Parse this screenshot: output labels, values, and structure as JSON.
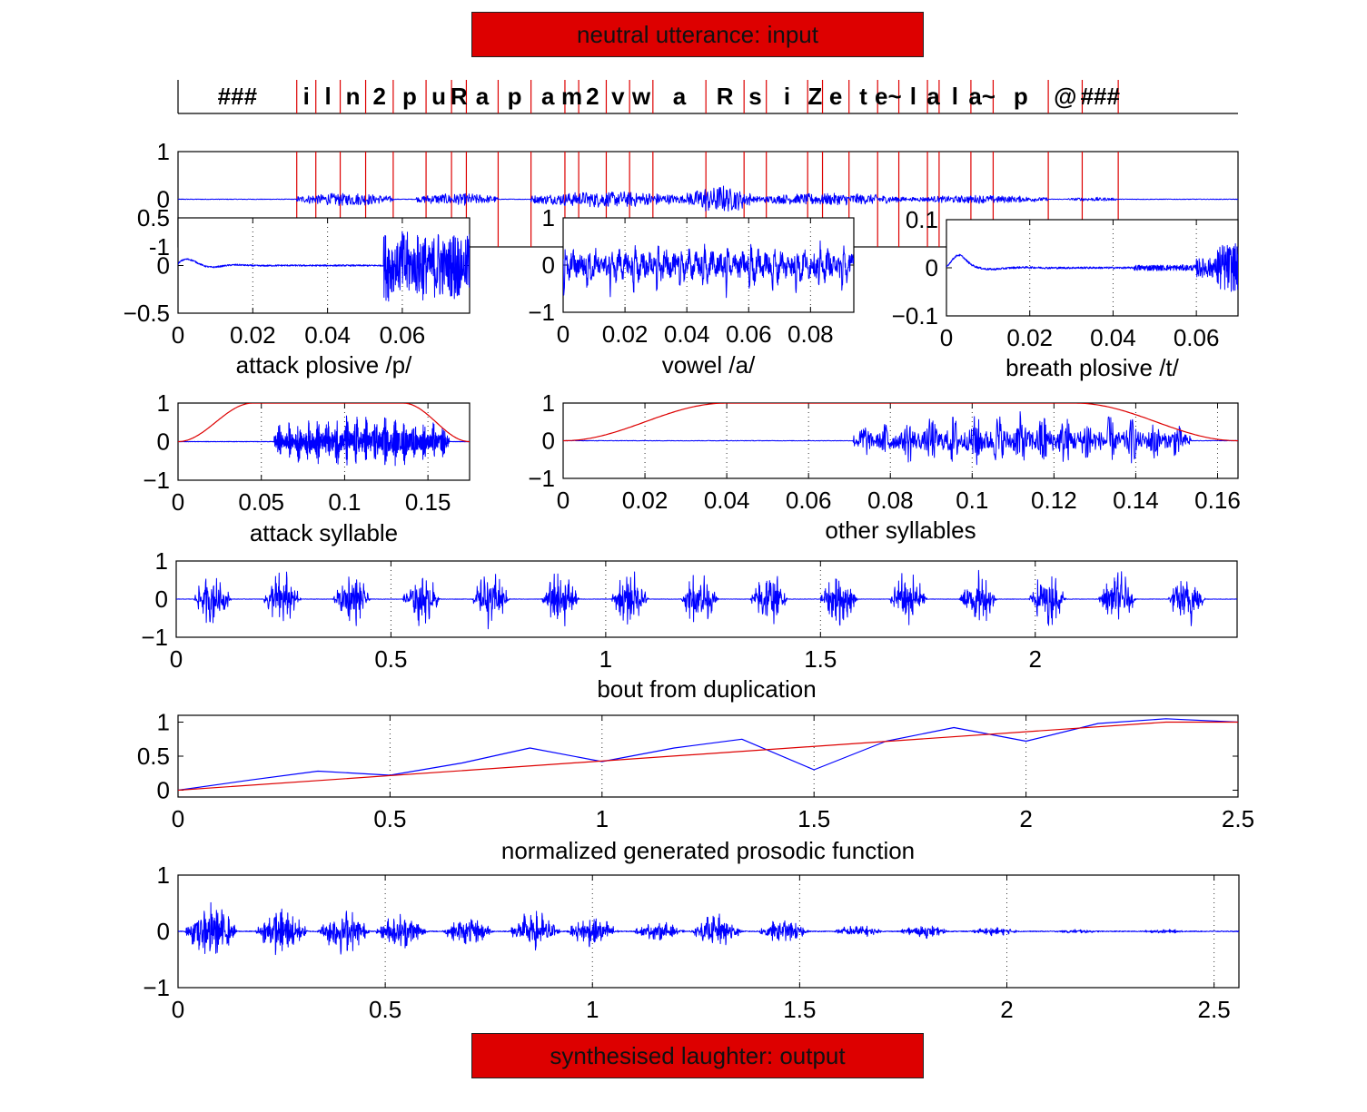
{
  "input_banner": "neutral utterance: input",
  "output_banner": "synthesised laughter: output",
  "colors": {
    "signal": "#0000ff",
    "envelope": "#dd0000",
    "banner_bg": "#dd0000",
    "axes": "#000000"
  },
  "chart_data": [
    {
      "id": "phoneme_tier",
      "type": "segmentation",
      "labels": [
        "###",
        "i",
        "l",
        "n",
        "2",
        "p",
        "u",
        "R",
        "a",
        "p",
        "a",
        "m",
        "2",
        "v",
        "w",
        "a",
        "R",
        "s",
        "i",
        "Z",
        "e",
        "t",
        "e~",
        "l",
        "a",
        "l",
        "a~",
        "p",
        "@",
        "###"
      ],
      "boundaries": [
        0.112,
        0.13,
        0.153,
        0.177,
        0.203,
        0.234,
        0.258,
        0.272,
        0.302,
        0.333,
        0.365,
        0.378,
        0.404,
        0.426,
        0.448,
        0.498,
        0.534,
        0.555,
        0.594,
        0.608,
        0.633,
        0.66,
        0.68,
        0.707,
        0.718,
        0.748,
        0.769,
        0.821,
        0.853,
        0.887
      ],
      "xlim": [
        0,
        1
      ]
    },
    {
      "id": "input_waveform",
      "type": "line",
      "ylim": [
        -1,
        1
      ],
      "yticks": [
        "1",
        "0",
        "-1"
      ],
      "grid": false
    },
    {
      "id": "attack_plosive",
      "type": "line",
      "title": "attack plosive /p/",
      "xlim": [
        0,
        0.078
      ],
      "ylim": [
        -0.5,
        0.5
      ],
      "xticks": [
        "0",
        "0.02",
        "0.04",
        "0.06"
      ],
      "yticks": [
        "0.5",
        "0",
        "−0.5"
      ],
      "grid": "x dotted"
    },
    {
      "id": "vowel_a",
      "type": "line",
      "title": "vowel /a/",
      "xlim": [
        0,
        0.094
      ],
      "ylim": [
        -1,
        1
      ],
      "xticks": [
        "0",
        "0.02",
        "0.04",
        "0.06",
        "0.08"
      ],
      "yticks": [
        "1",
        "0",
        "−1"
      ],
      "grid": "x dotted"
    },
    {
      "id": "breath_plosive",
      "type": "line",
      "title": "breath plosive /t/",
      "xlim": [
        0,
        0.07
      ],
      "ylim": [
        -0.1,
        0.1
      ],
      "xticks": [
        "0",
        "0.02",
        "0.04",
        "0.06"
      ],
      "yticks": [
        "0.1",
        "0",
        "−0.1"
      ],
      "grid": "x dotted"
    },
    {
      "id": "attack_syllable",
      "type": "line",
      "title": "attack syllable",
      "xlim": [
        0,
        0.175
      ],
      "ylim": [
        -1,
        1
      ],
      "xticks": [
        "0",
        "0.05",
        "0.1",
        "0.15"
      ],
      "yticks": [
        "1",
        "0",
        "−1"
      ],
      "grid": "x dotted",
      "series": [
        {
          "name": "",
          "kind": "waveform"
        },
        {
          "name": "",
          "kind": "window",
          "rise_end": 0.045,
          "fall_start": 0.135
        }
      ]
    },
    {
      "id": "other_syllables",
      "type": "line",
      "title": "other syllables",
      "xlim": [
        0,
        0.165
      ],
      "ylim": [
        -1,
        1
      ],
      "xticks": [
        "0",
        "0.02",
        "0.04",
        "0.06",
        "0.08",
        "0.1",
        "0.12",
        "0.14",
        "0.16"
      ],
      "yticks": [
        "1",
        "0",
        "−1"
      ],
      "grid": "x dotted",
      "series": [
        {
          "name": "",
          "kind": "waveform"
        },
        {
          "name": "",
          "kind": "window",
          "rise_end": 0.04,
          "fall_start": 0.125
        }
      ]
    },
    {
      "id": "bout_duplication",
      "type": "line",
      "title": "bout from duplication",
      "xlim": [
        0,
        2.47
      ],
      "ylim": [
        -1,
        1
      ],
      "xticks": [
        "0",
        "0.5",
        "1",
        "1.5",
        "2"
      ],
      "yticks": [
        "1",
        "0",
        "−1"
      ],
      "grid": "x dotted",
      "bursts": 15
    },
    {
      "id": "prosodic_function",
      "type": "line",
      "title": "normalized generated prosodic function",
      "xlim": [
        0,
        2.5
      ],
      "ylim": [
        -0.1,
        1.1
      ],
      "xticks": [
        "0",
        "0.5",
        "1",
        "1.5",
        "2",
        "2.5"
      ],
      "yticks": [
        "1",
        "0.5",
        "0"
      ],
      "grid": "x dotted",
      "series": [
        {
          "name": "",
          "x": [
            0,
            0.17,
            0.33,
            0.5,
            0.67,
            0.83,
            1.0,
            1.17,
            1.33,
            1.5,
            1.67,
            1.83,
            2.0,
            2.17,
            2.33,
            2.5
          ],
          "y": [
            0,
            0.15,
            0.28,
            0.22,
            0.4,
            0.62,
            0.42,
            0.62,
            0.75,
            0.3,
            0.72,
            0.92,
            0.72,
            0.98,
            1.05,
            1.0
          ]
        },
        {
          "name": "",
          "x": [
            0,
            2.33,
            2.5
          ],
          "y": [
            0,
            1.0,
            1.0
          ]
        }
      ]
    },
    {
      "id": "output_laughter",
      "type": "line",
      "xlim": [
        0,
        2.56
      ],
      "ylim": [
        -1,
        1
      ],
      "xticks": [
        "0",
        "0.5",
        "1",
        "1.5",
        "2",
        "2.5"
      ],
      "yticks": [
        "1",
        "0",
        "−1"
      ],
      "grid": "x dotted",
      "burst_centers": [
        0.08,
        0.25,
        0.4,
        0.54,
        0.7,
        0.86,
        1.0,
        1.16,
        1.3,
        1.46,
        1.64,
        1.8,
        1.97,
        2.17,
        2.38
      ],
      "burst_peaks": [
        0.55,
        0.45,
        0.42,
        0.35,
        0.27,
        0.38,
        0.29,
        0.18,
        0.32,
        0.23,
        0.12,
        0.13,
        0.08,
        0.04,
        0.04
      ]
    }
  ]
}
